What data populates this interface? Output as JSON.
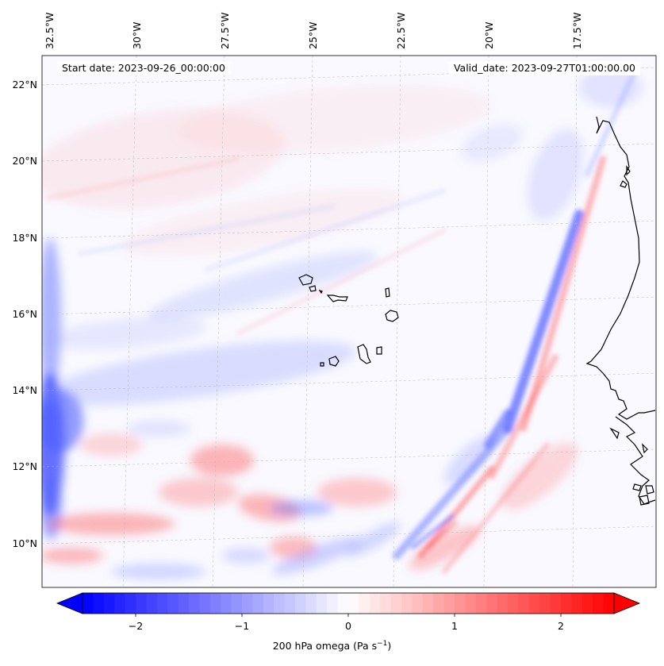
{
  "map": {
    "start_date_text": "Start date: 2023-09-26_00:00:00",
    "valid_date_text": "Valid_date: 2023-09-27T01:00:00.00",
    "lon_labels": [
      "32.5°W",
      "30°W",
      "27.5°W",
      "25°W",
      "22.5°W",
      "20°W",
      "17.5°W"
    ],
    "lat_labels": [
      "22°N",
      "20°N",
      "18°N",
      "16°N",
      "14°N",
      "12°N",
      "10°N"
    ],
    "extent": {
      "lon_min": -32.7,
      "lon_max": -15.1,
      "lat_min": 8.8,
      "lat_max": 22.8
    },
    "grid": true,
    "projection_note": "",
    "colors": {
      "neg": "#0000ff",
      "zero": "#ffffff",
      "pos": "#ff0000",
      "coast": "#000000"
    }
  },
  "colorbar": {
    "ticks": [
      "−2",
      "−1",
      "0",
      "1",
      "2"
    ],
    "tick_values": [
      -2,
      -1,
      0,
      1,
      2
    ],
    "range": [
      -2.5,
      2.5
    ],
    "label": "200 hPa omega (Pa s",
    "label_sup": "−1",
    "label_end": ")",
    "extend": "both"
  }
}
